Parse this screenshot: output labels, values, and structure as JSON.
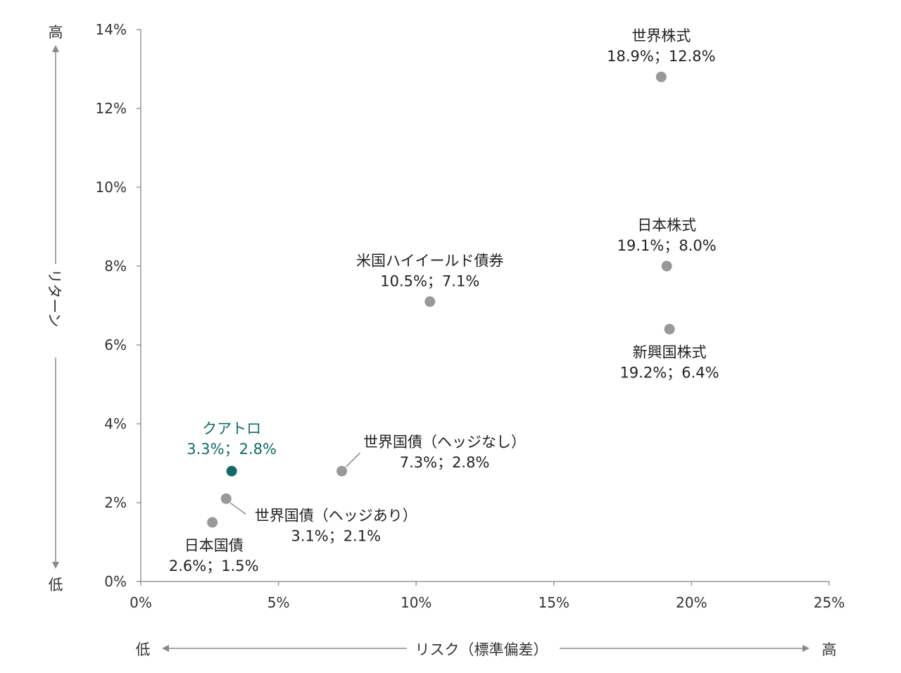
{
  "chart_data": {
    "type": "scatter",
    "title": "",
    "xlabel": "リスク（標準偏差）",
    "ylabel": "リターン",
    "x_low_label": "低",
    "x_high_label": "高",
    "y_low_label": "低",
    "y_high_label": "高",
    "xlim": [
      0,
      25
    ],
    "ylim": [
      0,
      14
    ],
    "x_ticks": [
      "0%",
      "5%",
      "10%",
      "15%",
      "20%",
      "25%"
    ],
    "y_ticks": [
      "0%",
      "2%",
      "4%",
      "6%",
      "8%",
      "10%",
      "12%",
      "14%"
    ],
    "grid": false,
    "highlight_color": "#0f6b68",
    "point_color": "#999999",
    "points": [
      {
        "name": "世界株式",
        "value_label": "18.9%；12.8%",
        "x": 18.9,
        "y": 12.8,
        "highlight": false
      },
      {
        "name": "日本株式",
        "value_label": "19.1%；8.0%",
        "x": 19.1,
        "y": 8.0,
        "highlight": false
      },
      {
        "name": "新興国株式",
        "value_label": "19.2%；6.4%",
        "x": 19.2,
        "y": 6.4,
        "highlight": false
      },
      {
        "name": "米国ハイイールド債券",
        "value_label": "10.5%；7.1%",
        "x": 10.5,
        "y": 7.1,
        "highlight": false
      },
      {
        "name": "世界国債（ヘッジなし）",
        "value_label": "7.3%；2.8%",
        "x": 7.3,
        "y": 2.8,
        "highlight": false
      },
      {
        "name": "クアトロ",
        "value_label": "3.3%；2.8%",
        "x": 3.3,
        "y": 2.8,
        "highlight": true
      },
      {
        "name": "世界国債（ヘッジあり）",
        "value_label": "3.1%；2.1%",
        "x": 3.1,
        "y": 2.1,
        "highlight": false
      },
      {
        "name": "日本国債",
        "value_label": "2.6%；1.5%",
        "x": 2.6,
        "y": 1.5,
        "highlight": false
      }
    ]
  }
}
